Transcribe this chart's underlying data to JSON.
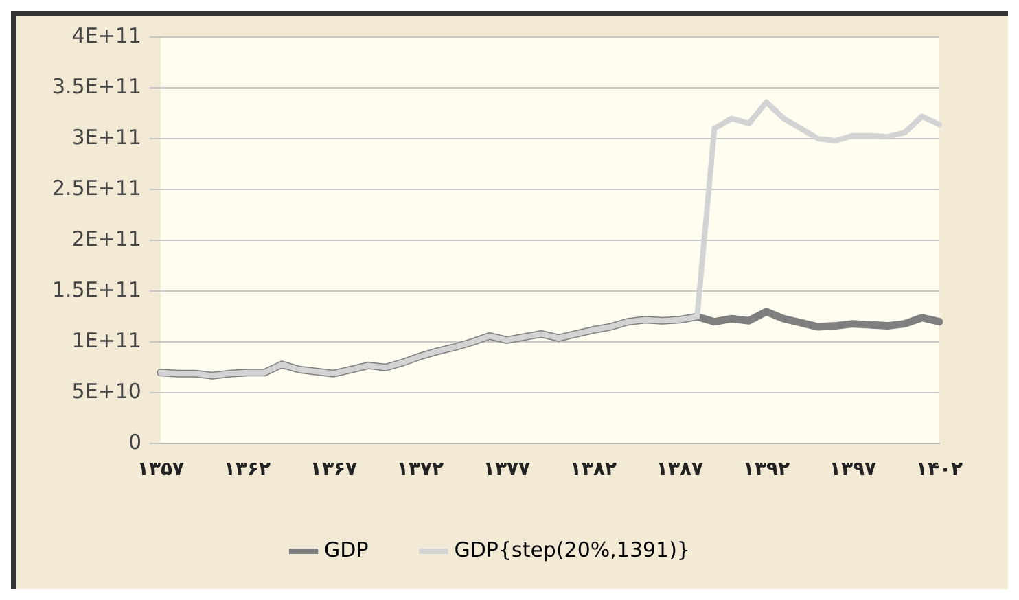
{
  "chart_data": {
    "type": "line",
    "categories": [
      "۱۳۵۷",
      null,
      null,
      null,
      null,
      "۱۳۶۲",
      null,
      null,
      null,
      null,
      "۱۳۶۷",
      null,
      null,
      null,
      null,
      "۱۳۷۲",
      null,
      null,
      null,
      null,
      "۱۳۷۷",
      null,
      null,
      null,
      null,
      "۱۳۸۲",
      null,
      null,
      null,
      null,
      "۱۳۸۷",
      null,
      null,
      null,
      null,
      "۱۳۹۲",
      null,
      null,
      null,
      null,
      "۱۳۹۷",
      null,
      null,
      null,
      null,
      "۱۴۰۲"
    ],
    "series": [
      {
        "name": "GDP",
        "color": "#7f7f7f",
        "values": [
          70000000000.0,
          69000000000.0,
          69000000000.0,
          67000000000.0,
          69000000000.0,
          70000000000.0,
          70000000000.0,
          78000000000.0,
          73000000000.0,
          71000000000.0,
          69000000000.0,
          73000000000.0,
          77000000000.0,
          75000000000.0,
          80000000000.0,
          86000000000.0,
          91000000000.0,
          95000000000.0,
          100000000000.0,
          106000000000.0,
          102000000000.0,
          105000000000.0,
          108000000000.0,
          104000000000.0,
          108000000000.0,
          112000000000.0,
          115000000000.0,
          120000000000.0,
          122000000000.0,
          121000000000.0,
          122000000000.0,
          125000000000.0,
          120000000000.0,
          123000000000.0,
          121000000000.0,
          130000000000.0,
          123000000000.0,
          119000000000.0,
          115000000000.0,
          116000000000.0,
          118000000000.0,
          117000000000.0,
          116000000000.0,
          118000000000.0,
          124000000000.0,
          120000000000.0
        ]
      },
      {
        "name": "GDP{step(20%,1391)}",
        "color": "#d3d3d3",
        "values": [
          70000000000.0,
          69000000000.0,
          69000000000.0,
          67000000000.0,
          69000000000.0,
          70000000000.0,
          70000000000.0,
          78000000000.0,
          73000000000.0,
          71000000000.0,
          69000000000.0,
          73000000000.0,
          77000000000.0,
          75000000000.0,
          80000000000.0,
          86000000000.0,
          91000000000.0,
          95000000000.0,
          100000000000.0,
          106000000000.0,
          102000000000.0,
          105000000000.0,
          108000000000.0,
          104000000000.0,
          108000000000.0,
          112000000000.0,
          115000000000.0,
          120000000000.0,
          122000000000.0,
          121000000000.0,
          122000000000.0,
          125000000000.0,
          310000000000.0,
          320000000000.0,
          315000000000.0,
          336000000000.0,
          320000000000.0,
          310000000000.0,
          300000000000.0,
          298000000000.0,
          303000000000.0,
          303000000000.0,
          302000000000.0,
          306000000000.0,
          322000000000.0,
          314000000000.0
        ]
      }
    ],
    "ylim": [
      0,
      400000000000.0
    ],
    "yticks": [
      0,
      {
        "value": 50000000000.0,
        "label": "5E+10"
      },
      {
        "value": 100000000000.0,
        "label": "1E+11"
      },
      {
        "value": 150000000000.0,
        "label": "1.5E+11"
      },
      {
        "value": 200000000000.0,
        "label": "2E+11"
      },
      {
        "value": 250000000000.0,
        "label": "2.5E+11"
      },
      {
        "value": 300000000000.0,
        "label": "3E+11"
      },
      {
        "value": 350000000000.0,
        "label": "3.5E+11"
      },
      {
        "value": 400000000000.0,
        "label": "4E+11"
      }
    ],
    "grid": "y",
    "legend": "bottom",
    "marker": "none",
    "line_style": "solid"
  }
}
